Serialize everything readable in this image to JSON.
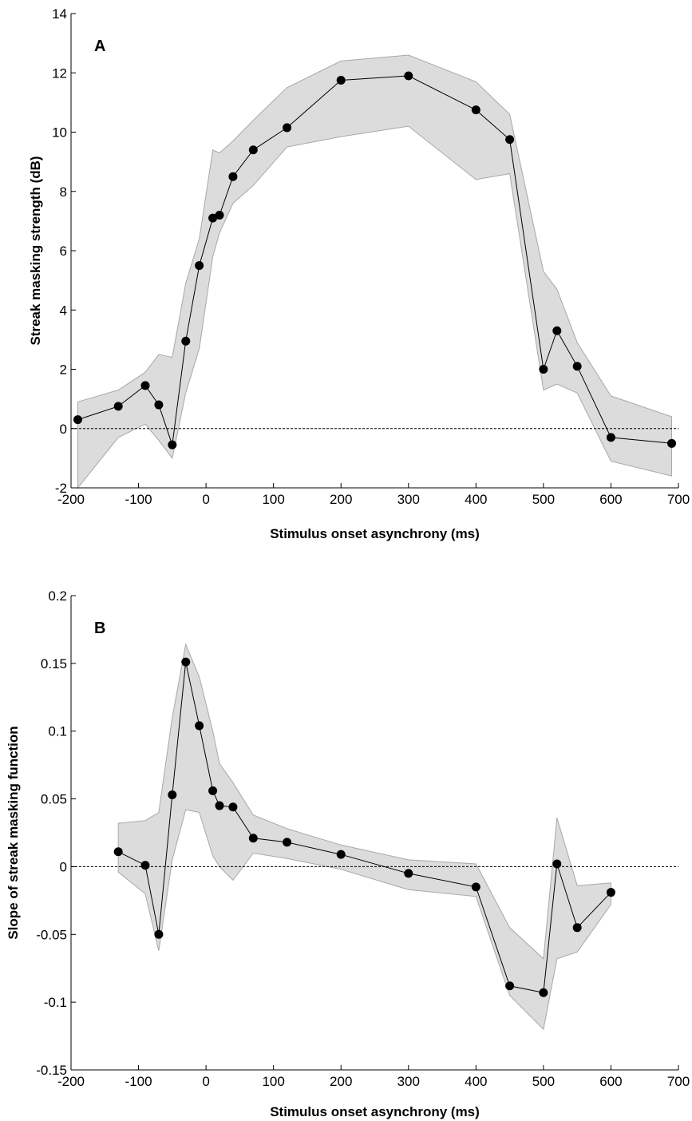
{
  "chart_data": [
    {
      "type": "line",
      "panel_label": "A",
      "xlabel": "Stimulus onset asynchrony (ms)",
      "ylabel": "Streak masking strength (dB)",
      "xlim": [
        -200,
        700
      ],
      "ylim": [
        -2,
        14
      ],
      "xticks": [
        -200,
        -100,
        0,
        100,
        200,
        300,
        400,
        500,
        600,
        700
      ],
      "yticks": [
        -2,
        0,
        2,
        4,
        6,
        8,
        10,
        12,
        14
      ],
      "xtick_labels": [
        "-200",
        "-100",
        "0",
        "100",
        "200",
        "300",
        "400",
        "500",
        "600",
        "700"
      ],
      "ytick_labels": [
        "-2",
        "0",
        "2",
        "4",
        "6",
        "8",
        "10",
        "12",
        "14"
      ],
      "reference_line_y": 0,
      "grid": false,
      "series": [
        {
          "x": [
            -190,
            -130,
            -90,
            -70,
            -50,
            -30,
            -10,
            10,
            20,
            40,
            70,
            120,
            200,
            300,
            400,
            450,
            500,
            520,
            550,
            600,
            690
          ],
          "y": [
            0.3,
            0.75,
            1.45,
            0.8,
            -0.55,
            2.95,
            5.5,
            7.1,
            7.2,
            8.5,
            9.4,
            10.15,
            11.75,
            11.9,
            10.75,
            9.75,
            2.0,
            3.3,
            2.1,
            -0.3,
            -0.5
          ],
          "upper": [
            0.9,
            1.3,
            1.9,
            2.5,
            2.4,
            4.9,
            6.4,
            9.4,
            9.3,
            9.7,
            10.4,
            11.5,
            12.4,
            12.6,
            11.7,
            10.6,
            5.3,
            4.7,
            2.9,
            1.1,
            0.4
          ],
          "lower": [
            -2.0,
            -0.3,
            0.15,
            -0.4,
            -1.0,
            1.2,
            2.7,
            5.8,
            6.6,
            7.6,
            8.2,
            9.5,
            9.85,
            10.2,
            8.4,
            8.6,
            1.3,
            1.5,
            1.2,
            -1.1,
            -1.6
          ]
        }
      ]
    },
    {
      "type": "line",
      "panel_label": "B",
      "xlabel": "Stimulus onset asynchrony (ms)",
      "ylabel": "Slope of streak masking function",
      "xlim": [
        -200,
        700
      ],
      "ylim": [
        -0.15,
        0.2
      ],
      "xticks": [
        -200,
        -100,
        0,
        100,
        200,
        300,
        400,
        500,
        600,
        700
      ],
      "yticks": [
        -0.15,
        -0.1,
        -0.05,
        0,
        0.05,
        0.1,
        0.15,
        0.2
      ],
      "xtick_labels": [
        "-200",
        "-100",
        "0",
        "100",
        "200",
        "300",
        "400",
        "500",
        "600",
        "700"
      ],
      "ytick_labels": [
        "-0.15",
        "-0.1",
        "-0.05",
        "0",
        "0.05",
        "0.1",
        "0.15",
        "0.2"
      ],
      "reference_line_y": 0,
      "grid": false,
      "series": [
        {
          "x": [
            -130,
            -90,
            -70,
            -50,
            -30,
            -10,
            10,
            20,
            40,
            70,
            120,
            200,
            300,
            400,
            450,
            500,
            520,
            550,
            600
          ],
          "y": [
            0.011,
            0.001,
            -0.05,
            0.053,
            0.151,
            0.104,
            0.056,
            0.045,
            0.044,
            0.021,
            0.018,
            0.009,
            -0.005,
            -0.015,
            -0.088,
            -0.093,
            0.002,
            -0.045,
            -0.019
          ],
          "upper": [
            0.032,
            0.034,
            0.04,
            0.11,
            0.164,
            0.14,
            0.1,
            0.076,
            0.062,
            0.038,
            0.028,
            0.016,
            0.005,
            0.002,
            -0.045,
            -0.068,
            0.036,
            -0.014,
            -0.012
          ],
          "lower": [
            -0.004,
            -0.02,
            -0.062,
            0.005,
            0.042,
            0.04,
            0.008,
            0.0,
            -0.01,
            0.01,
            0.006,
            -0.002,
            -0.017,
            -0.022,
            -0.095,
            -0.12,
            -0.068,
            -0.063,
            -0.028
          ]
        }
      ]
    }
  ]
}
